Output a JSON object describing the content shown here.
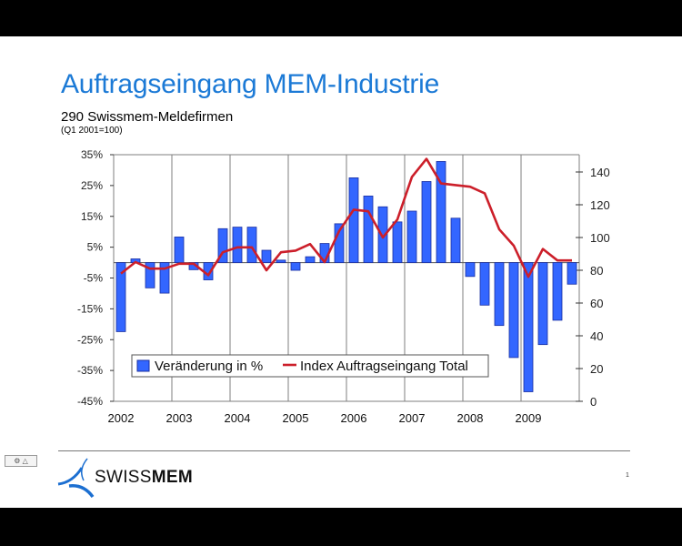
{
  "slide": {
    "title": "Auftragseingang MEM-Industrie",
    "subtitle": "290 Swissmem-Meldefirmen",
    "note": "(Q1 2001=100)",
    "logo_text_light": "SWISS",
    "logo_text_bold": "MEM",
    "page_number": "1",
    "nav_widget_label": "⚙ △"
  },
  "colors": {
    "title": "#1c7ad6",
    "bar_fill": "#3366ff",
    "bar_stroke": "#1a2fa0",
    "line": "#cc1f2a",
    "grid": "#7f7f7f"
  },
  "chart_data": {
    "type": "bar+line",
    "title": "Auftragseingang MEM-Industrie",
    "subtitle": "290 Swissmem-Meldefirmen (Q1 2001=100)",
    "xlabel": "",
    "categories": [
      "2002",
      "2003",
      "2004",
      "2005",
      "2006",
      "2007",
      "2008",
      "2009"
    ],
    "x_quarters": [
      "2002Q1",
      "2002Q2",
      "2002Q3",
      "2002Q4",
      "2003Q1",
      "2003Q2",
      "2003Q3",
      "2003Q4",
      "2004Q1",
      "2004Q2",
      "2004Q3",
      "2004Q4",
      "2005Q1",
      "2005Q2",
      "2005Q3",
      "2005Q4",
      "2006Q1",
      "2006Q2",
      "2006Q3",
      "2006Q4",
      "2007Q1",
      "2007Q2",
      "2007Q3",
      "2007Q4",
      "2008Q1",
      "2008Q2",
      "2008Q3",
      "2008Q4",
      "2009Q1",
      "2009Q2",
      "2009Q3",
      "2009Q4"
    ],
    "series": [
      {
        "name": "Veränderung in %",
        "type": "bar",
        "axis": "left",
        "values": [
          -22.4,
          1.2,
          -8.2,
          -9.9,
          8.3,
          -2.3,
          -5.6,
          11.0,
          11.5,
          11.5,
          4.0,
          0.8,
          -2.5,
          1.9,
          6.2,
          12.6,
          27.5,
          21.6,
          18.1,
          13.2,
          16.7,
          26.3,
          32.8,
          14.4,
          -4.5,
          -13.8,
          -20.4,
          -30.8,
          -41.9,
          -26.6,
          -18.7,
          -7.0
        ]
      },
      {
        "name": "Index Auftragseingang Total",
        "type": "line",
        "axis": "right",
        "values": [
          78,
          85,
          81,
          81,
          84,
          84,
          77,
          91,
          94,
          94,
          80,
          91,
          92,
          96,
          85,
          104,
          117,
          116,
          100,
          111,
          137,
          148,
          133,
          132,
          131,
          127,
          105,
          95,
          76,
          93,
          86,
          86
        ]
      }
    ],
    "y_left": {
      "label": "",
      "ticks": [
        "35%",
        "25%",
        "15%",
        "5%",
        "-5%",
        "-15%",
        "-25%",
        "-35%",
        "-45%"
      ],
      "range": [
        -45,
        35
      ]
    },
    "y_right": {
      "label": "",
      "ticks": [
        "140",
        "120",
        "100",
        "80",
        "60",
        "40",
        "20",
        "0"
      ],
      "range": [
        0,
        150
      ]
    },
    "legend": {
      "position": "inside-bottom",
      "entries": [
        "Veränderung in %",
        "Index Auftragseingang Total"
      ]
    },
    "grid": {
      "vertical_year_lines": true,
      "horizontal": false
    }
  }
}
